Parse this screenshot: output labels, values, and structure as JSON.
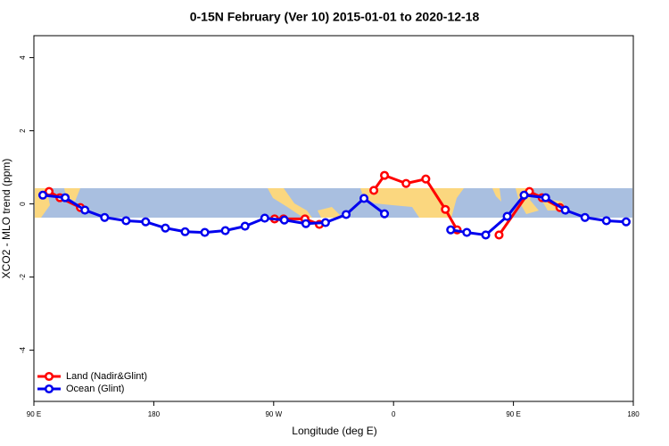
{
  "chart_data": {
    "type": "line",
    "title": "0-15N February (Ver 10)   2015-01-01 to 2020-12-18",
    "xlabel": "Longitude (deg E)",
    "ylabel": "XCO2 - MLO trend (ppm)",
    "xlim": [
      90,
      540
    ],
    "ylim": [
      -5.4,
      4.6
    ],
    "xticks": [
      {
        "value": 90,
        "label": "90 E"
      },
      180,
      {
        "value": 270,
        "label": "90 W"
      },
      {
        "value": 360,
        "label": "0"
      },
      {
        "value": 450,
        "label": "90 E"
      },
      {
        "value": 540,
        "label": "180"
      }
    ],
    "yticks": [
      -4,
      -2,
      0,
      2,
      4
    ],
    "legend": "bottom-left",
    "series": [
      {
        "name": "Land (Nadir&Glint)",
        "color": "#ff0000",
        "x": [
          101.4,
          109.5,
          124.9,
          null,
          270.7,
          277.4,
          293.5,
          304.3,
          null,
          345.2,
          353.2,
          369.4,
          384.2,
          398.9,
          407.7,
          null,
          439.2,
          462.0,
          471.5,
          484.9
        ],
        "values": [
          0.34,
          0.17,
          -0.1,
          null,
          -0.41,
          -0.41,
          -0.41,
          -0.56,
          null,
          0.37,
          0.78,
          0.56,
          0.68,
          -0.15,
          -0.71,
          null,
          -0.85,
          0.34,
          0.17,
          -0.1
        ]
      },
      {
        "name": "Ocean (Glint)",
        "color": "#0000ee",
        "x": [
          96.7,
          113.5,
          128.3,
          143.1,
          159.2,
          173.9,
          188.7,
          203.5,
          218.3,
          233.7,
          248.5,
          263.3,
          278.0,
          294.2,
          308.9,
          324.4,
          337.8,
          353.2,
          null,
          402.9,
          415.0,
          429.2,
          445.3,
          458.0,
          474.2,
          488.9,
          503.7,
          519.8,
          534.6
        ],
        "values": [
          0.24,
          0.17,
          -0.17,
          -0.37,
          -0.46,
          -0.49,
          -0.66,
          -0.76,
          -0.78,
          -0.73,
          -0.61,
          -0.39,
          -0.44,
          -0.54,
          -0.51,
          -0.29,
          0.15,
          -0.27,
          null,
          -0.71,
          -0.78,
          -0.85,
          -0.34,
          0.24,
          0.17,
          -0.17,
          -0.37,
          -0.46,
          -0.49
        ]
      }
    ]
  }
}
